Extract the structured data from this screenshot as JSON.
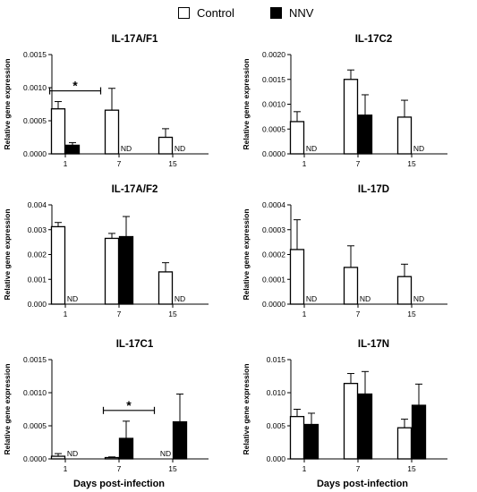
{
  "legend": {
    "control_label": "Control",
    "nnv_label": "NNV",
    "control_color": "#ffffff",
    "nnv_color": "#000000"
  },
  "x_axis_title": "Days post-infection",
  "chart_data": [
    {
      "type": "bar",
      "title": "IL-17A/F1",
      "ylabel": "Relative gene expression",
      "categories": [
        "1",
        "7",
        "15"
      ],
      "ylim": [
        0,
        0.0015
      ],
      "yticks": [
        "0.0000",
        "0.0005",
        "0.0010",
        "0.0015"
      ],
      "series": [
        {
          "name": "Control",
          "values": [
            0.00068,
            0.00066,
            0.00025
          ],
          "errors": [
            0.00011,
            0.00033,
            0.00013
          ]
        },
        {
          "name": "NNV",
          "values": [
            0.00013,
            null,
            null
          ],
          "errors": [
            4e-05,
            null,
            null
          ]
        }
      ],
      "nd": [
        {
          "category": "7",
          "series": "NNV",
          "text": "ND"
        },
        {
          "category": "15",
          "series": "NNV",
          "text": "ND"
        }
      ],
      "significance": [
        {
          "from": "1",
          "to": "1",
          "text": "*"
        }
      ]
    },
    {
      "type": "bar",
      "title": "IL-17C2",
      "ylabel": "Relative gene expression",
      "categories": [
        "1",
        "7",
        "15"
      ],
      "ylim": [
        0,
        0.002
      ],
      "yticks": [
        "0.0000",
        "0.0005",
        "0.0010",
        "0.0015",
        "0.0020"
      ],
      "series": [
        {
          "name": "Control",
          "values": [
            0.00065,
            0.0015,
            0.00074
          ],
          "errors": [
            0.0002,
            0.00019,
            0.00034
          ]
        },
        {
          "name": "NNV",
          "values": [
            null,
            0.00078,
            null
          ],
          "errors": [
            null,
            0.00041,
            null
          ]
        }
      ],
      "nd": [
        {
          "category": "1",
          "series": "NNV",
          "text": "ND"
        },
        {
          "category": "15",
          "series": "NNV",
          "text": "ND"
        }
      ],
      "significance": []
    },
    {
      "type": "bar",
      "title": "IL-17A/F2",
      "ylabel": "Relative gene expression",
      "categories": [
        "1",
        "7",
        "15"
      ],
      "ylim": [
        0,
        0.004
      ],
      "yticks": [
        "0.000",
        "0.001",
        "0.002",
        "0.003",
        "0.004"
      ],
      "series": [
        {
          "name": "Control",
          "values": [
            0.00312,
            0.00265,
            0.0013
          ],
          "errors": [
            0.00017,
            0.0002,
            0.00037
          ]
        },
        {
          "name": "NNV",
          "values": [
            null,
            0.00272,
            null
          ],
          "errors": [
            null,
            0.00081,
            null
          ]
        }
      ],
      "nd": [
        {
          "category": "1",
          "series": "NNV",
          "text": "ND"
        },
        {
          "category": "15",
          "series": "NNV",
          "text": "ND"
        }
      ],
      "significance": []
    },
    {
      "type": "bar",
      "title": "IL-17D",
      "ylabel": "Relative gene expression",
      "categories": [
        "1",
        "7",
        "15"
      ],
      "ylim": [
        0,
        0.0004
      ],
      "yticks": [
        "0.0000",
        "0.0001",
        "0.0002",
        "0.0003",
        "0.0004"
      ],
      "series": [
        {
          "name": "Control",
          "values": [
            0.00022,
            0.000148,
            0.000111
          ],
          "errors": [
            0.00012,
            8.7e-05,
            5e-05
          ]
        },
        {
          "name": "NNV",
          "values": [
            null,
            null,
            null
          ],
          "errors": [
            null,
            null,
            null
          ]
        }
      ],
      "nd": [
        {
          "category": "1",
          "series": "NNV",
          "text": "ND"
        },
        {
          "category": "7",
          "series": "NNV",
          "text": "ND"
        },
        {
          "category": "15",
          "series": "NNV",
          "text": "ND"
        }
      ],
      "significance": []
    },
    {
      "type": "bar",
      "title": "IL-17C1",
      "ylabel": "Relative gene expression",
      "categories": [
        "1",
        "7",
        "15"
      ],
      "ylim": [
        0,
        0.0015
      ],
      "yticks": [
        "0.0000",
        "0.0005",
        "0.0010",
        "0.0015"
      ],
      "series": [
        {
          "name": "Control",
          "values": [
            4e-05,
            2e-05,
            null
          ],
          "errors": [
            4e-05,
            1e-05,
            null
          ]
        },
        {
          "name": "NNV",
          "values": [
            null,
            0.00031,
            0.00056
          ],
          "errors": [
            null,
            0.00026,
            0.00042
          ]
        }
      ],
      "nd": [
        {
          "category": "1",
          "series": "NNV",
          "text": "ND"
        },
        {
          "category": "15",
          "series": "Control",
          "text": "ND"
        }
      ],
      "significance": [
        {
          "from": "7",
          "to": "7",
          "text": "*"
        }
      ]
    },
    {
      "type": "bar",
      "title": "IL-17N",
      "ylabel": "Relative gene expression",
      "categories": [
        "1",
        "7",
        "15"
      ],
      "ylim": [
        0,
        0.015
      ],
      "yticks": [
        "0.000",
        "0.005",
        "0.010",
        "0.015"
      ],
      "series": [
        {
          "name": "Control",
          "values": [
            0.0064,
            0.0114,
            0.0047
          ],
          "errors": [
            0.0011,
            0.0015,
            0.0013
          ]
        },
        {
          "name": "NNV",
          "values": [
            0.0052,
            0.0098,
            0.0081
          ],
          "errors": [
            0.0017,
            0.0034,
            0.0032
          ]
        }
      ],
      "nd": [],
      "significance": []
    }
  ]
}
